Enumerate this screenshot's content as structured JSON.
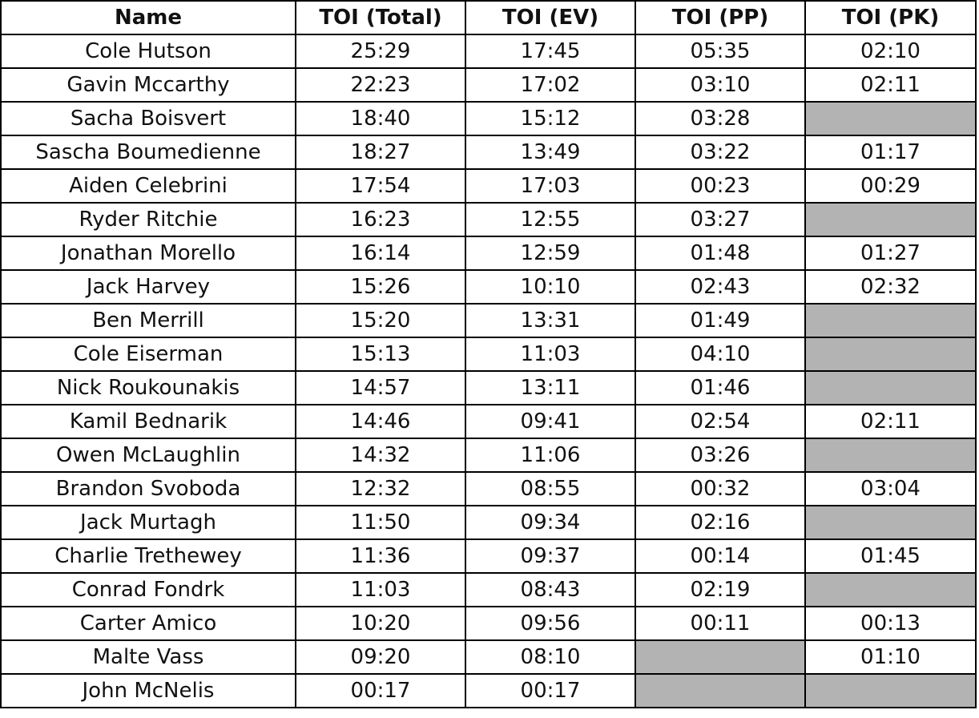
{
  "table": {
    "header": [
      "Name",
      "TOI (Total)",
      "TOI (EV)",
      "TOI (PP)",
      "TOI (PK)"
    ],
    "rows": [
      [
        "Cole Hutson",
        "25:29",
        "17:45",
        "05:35",
        "02:10"
      ],
      [
        "Gavin Mccarthy",
        "22:23",
        "17:02",
        "03:10",
        "02:11"
      ],
      [
        "Sacha Boisvert",
        "18:40",
        "15:12",
        "03:28",
        null
      ],
      [
        "Sascha Boumedienne",
        "18:27",
        "13:49",
        "03:22",
        "01:17"
      ],
      [
        "Aiden Celebrini",
        "17:54",
        "17:03",
        "00:23",
        "00:29"
      ],
      [
        "Ryder Ritchie",
        "16:23",
        "12:55",
        "03:27",
        null
      ],
      [
        "Jonathan Morello",
        "16:14",
        "12:59",
        "01:48",
        "01:27"
      ],
      [
        "Jack Harvey",
        "15:26",
        "10:10",
        "02:43",
        "02:32"
      ],
      [
        "Ben Merrill",
        "15:20",
        "13:31",
        "01:49",
        null
      ],
      [
        "Cole Eiserman",
        "15:13",
        "11:03",
        "04:10",
        null
      ],
      [
        "Nick Roukounakis",
        "14:57",
        "13:11",
        "01:46",
        null
      ],
      [
        "Kamil Bednarik",
        "14:46",
        "09:41",
        "02:54",
        "02:11"
      ],
      [
        "Owen McLaughlin",
        "14:32",
        "11:06",
        "03:26",
        null
      ],
      [
        "Brandon Svoboda",
        "12:32",
        "08:55",
        "00:32",
        "03:04"
      ],
      [
        "Jack Murtagh",
        "11:50",
        "09:34",
        "02:16",
        null
      ],
      [
        "Charlie Trethewey",
        "11:36",
        "09:37",
        "00:14",
        "01:45"
      ],
      [
        "Conrad Fondrk",
        "11:03",
        "08:43",
        "02:19",
        null
      ],
      [
        "Carter Amico",
        "10:20",
        "09:56",
        "00:11",
        "00:13"
      ],
      [
        "Malte Vass",
        "09:20",
        "08:10",
        null,
        "01:10"
      ],
      [
        "John McNelis",
        "00:17",
        "00:17",
        null,
        null
      ]
    ]
  }
}
